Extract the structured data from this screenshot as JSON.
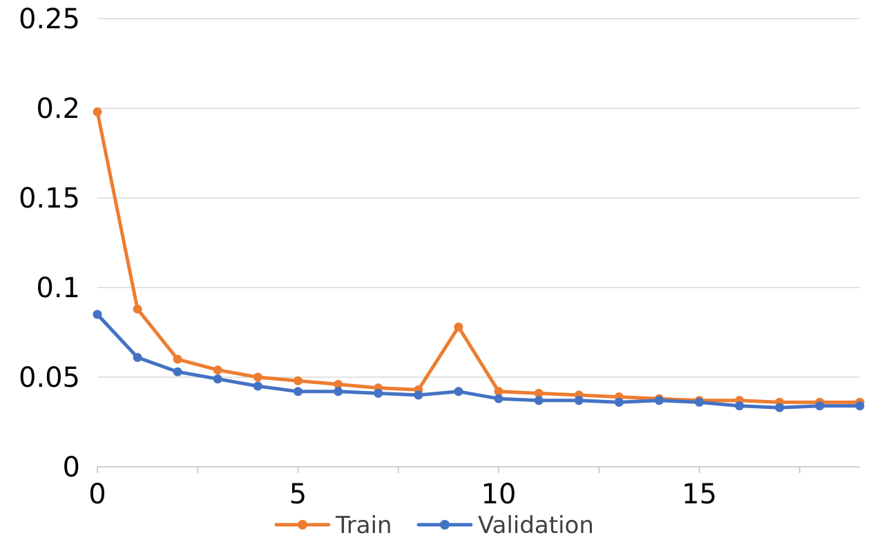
{
  "chart_data": {
    "type": "line",
    "title": "",
    "xlabel": "",
    "ylabel": "",
    "x": [
      0,
      1,
      2,
      3,
      4,
      5,
      6,
      7,
      8,
      9,
      10,
      11,
      12,
      13,
      14,
      15,
      16,
      17,
      18,
      19
    ],
    "xlim": [
      0,
      19
    ],
    "ylim": [
      0,
      0.25
    ],
    "x_ticks": [
      0,
      5,
      10,
      15
    ],
    "x_tick_labels": [
      "0",
      "5",
      "10",
      "15"
    ],
    "y_ticks": [
      0,
      0.05,
      0.1,
      0.15,
      0.2,
      0.25
    ],
    "y_tick_labels": [
      "0",
      "0.05",
      "0.1",
      "0.15",
      "0.2",
      "0.25"
    ],
    "grid": "horizontal",
    "legend_position": "bottom",
    "series": [
      {
        "name": "Train",
        "color": "#ED7D31",
        "values": [
          0.198,
          0.088,
          0.06,
          0.054,
          0.05,
          0.048,
          0.046,
          0.044,
          0.043,
          0.078,
          0.042,
          0.041,
          0.04,
          0.039,
          0.038,
          0.037,
          0.037,
          0.036,
          0.036,
          0.036
        ]
      },
      {
        "name": "Validation",
        "color": "#4472C4",
        "values": [
          0.085,
          0.061,
          0.053,
          0.049,
          0.045,
          0.042,
          0.042,
          0.041,
          0.04,
          0.042,
          0.038,
          0.037,
          0.037,
          0.036,
          0.037,
          0.036,
          0.034,
          0.033,
          0.034,
          0.034
        ]
      }
    ]
  }
}
